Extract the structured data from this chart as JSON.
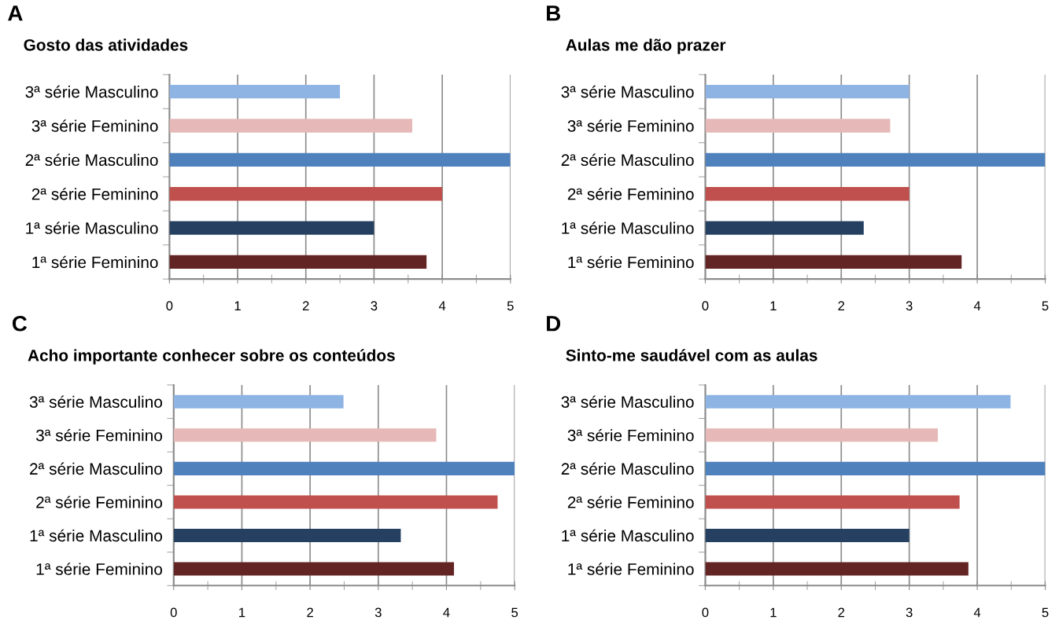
{
  "chart_data": [
    {
      "type": "bar",
      "orientation": "horizontal",
      "title": "Gosto das atividades",
      "annotations": [
        "A"
      ],
      "categories": [
        "3ª série Masculino",
        "3ª série Feminino",
        "2ª série Masculino",
        "2ª série Feminino",
        "1ª série Masculino",
        "1ª série Feminino"
      ],
      "values": [
        2.5,
        3.56,
        5,
        4,
        3,
        3.77
      ],
      "colors": [
        "#8eb4e3",
        "#e6b9b8",
        "#4f81bd",
        "#c0504d",
        "#254061",
        "#632523"
      ],
      "xlim": [
        0,
        5
      ],
      "xticks": [
        0,
        {
          "value": 0.5,
          "label": null
        },
        1,
        {
          "value": 1.5,
          "label": null
        },
        2,
        {
          "value": 2.5,
          "label": null
        },
        3,
        {
          "value": 3.5,
          "label": null
        },
        4,
        {
          "value": 4.5,
          "label": null
        },
        5
      ],
      "grid": "x"
    },
    {
      "type": "bar",
      "orientation": "horizontal",
      "title": "Aulas me dão prazer",
      "annotations": [
        "B"
      ],
      "categories": [
        "3ª série Masculino",
        "3ª série Feminino",
        "2ª série Masculino",
        "2ª série Feminino",
        "1ª série Masculino",
        "1ª série Feminino"
      ],
      "values": [
        3,
        2.72,
        5,
        3,
        2.33,
        3.77
      ],
      "colors": [
        "#8eb4e3",
        "#e6b9b8",
        "#4f81bd",
        "#c0504d",
        "#254061",
        "#632523"
      ],
      "xlim": [
        0,
        5
      ],
      "xticks": [
        0,
        {
          "value": 0.5,
          "label": null
        },
        1,
        {
          "value": 1.5,
          "label": null
        },
        2,
        {
          "value": 2.5,
          "label": null
        },
        3,
        {
          "value": 3.5,
          "label": null
        },
        4,
        {
          "value": 4.5,
          "label": null
        },
        5
      ],
      "grid": "x"
    },
    {
      "type": "bar",
      "orientation": "horizontal",
      "title": "Acho importante conhecer sobre os conteúdos",
      "annotations": [
        "C"
      ],
      "categories": [
        "3ª série Masculino",
        "3ª série Feminino",
        "2ª série Masculino",
        "2ª série Feminino",
        "1ª série Masculino",
        "1ª série Feminino"
      ],
      "values": [
        2.49,
        3.85,
        5,
        4.75,
        3.33,
        4.11
      ],
      "colors": [
        "#8eb4e3",
        "#e6b9b8",
        "#4f81bd",
        "#c0504d",
        "#254061",
        "#632523"
      ],
      "xlim": [
        0,
        5
      ],
      "xticks": [
        0,
        {
          "value": 0.5,
          "label": null
        },
        1,
        {
          "value": 1.5,
          "label": null
        },
        2,
        {
          "value": 2.5,
          "label": null
        },
        3,
        {
          "value": 3.5,
          "label": null
        },
        4,
        {
          "value": 4.5,
          "label": null
        },
        5
      ],
      "grid": "x"
    },
    {
      "type": "bar",
      "orientation": "horizontal",
      "title": "Sinto-me saudável com as aulas",
      "annotations": [
        "D"
      ],
      "categories": [
        "3ª série Masculino",
        "3ª série Feminino",
        "2ª série Masculino",
        "2ª série Feminino",
        "1ª série Masculino",
        "1ª série Feminino"
      ],
      "values": [
        4.49,
        3.42,
        5,
        3.74,
        3,
        3.87
      ],
      "colors": [
        "#8eb4e3",
        "#e6b9b8",
        "#4f81bd",
        "#c0504d",
        "#254061",
        "#632523"
      ],
      "xlim": [
        0,
        5
      ],
      "xticks": [
        0,
        {
          "value": 0.5,
          "label": null
        },
        1,
        {
          "value": 1.5,
          "label": null
        },
        2,
        {
          "value": 2.5,
          "label": null
        },
        3,
        {
          "value": 3.5,
          "label": null
        },
        4,
        {
          "value": 4.5,
          "label": null
        },
        5
      ],
      "grid": "x"
    }
  ]
}
